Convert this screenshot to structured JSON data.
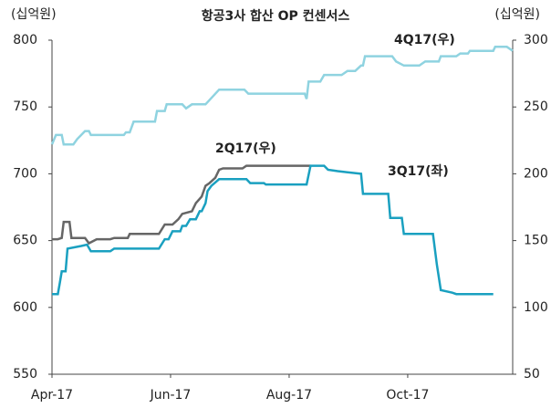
{
  "chart_data": {
    "type": "line",
    "title": "항공3사 합산 OP 컨센서스",
    "y_label": "(십억원)",
    "y2_label": "(십억원)",
    "xlim": [
      0,
      237
    ],
    "xticks": [
      {
        "value": 0,
        "label": "Apr-17"
      },
      {
        "value": 61,
        "label": "Jun-17"
      },
      {
        "value": 122,
        "label": "Aug-17"
      },
      {
        "value": 183,
        "label": "Oct-17"
      }
    ],
    "ylim": [
      550,
      800
    ],
    "yticks": [
      550,
      600,
      650,
      700,
      750,
      800
    ],
    "y2lim": [
      50,
      300
    ],
    "y2ticks": [
      50,
      100,
      150,
      200,
      250,
      300
    ],
    "series": [
      {
        "name": "4Q17(우)",
        "color": "#8fd3e0",
        "axis": "y2",
        "x": [
          0,
          2,
          5,
          6,
          11,
          13,
          17,
          19,
          20,
          37,
          38,
          40,
          42,
          53,
          54,
          58,
          59,
          67,
          69,
          72,
          79,
          86,
          99,
          101,
          130,
          131,
          132,
          138,
          140,
          149,
          152,
          156,
          159,
          160,
          161,
          175,
          177,
          181,
          189,
          192,
          199,
          200,
          208,
          210,
          214,
          215,
          227,
          228,
          234,
          237
        ],
        "values": [
          222,
          229,
          229,
          222,
          222,
          226,
          232,
          232,
          229,
          229,
          231,
          231,
          239,
          239,
          247,
          247,
          252,
          252,
          249,
          252,
          252,
          263,
          263,
          260,
          260,
          256,
          269,
          269,
          274,
          274,
          277,
          277,
          281,
          281,
          288,
          288,
          284,
          281,
          281,
          284,
          284,
          288,
          288,
          290,
          290,
          292,
          292,
          295,
          295,
          292
        ]
      },
      {
        "name": "2Q17(우)",
        "color": "#666666",
        "axis": "y2",
        "x": [
          0,
          3,
          5,
          6,
          9,
          10,
          17,
          19,
          23,
          30,
          32,
          39,
          40,
          55,
          58,
          62,
          65,
          67,
          72,
          74,
          77,
          79,
          81,
          84,
          86,
          88,
          98,
          100,
          133
        ],
        "values": [
          151,
          151,
          152,
          164,
          164,
          152,
          152,
          148,
          151,
          151,
          152,
          152,
          155,
          155,
          162,
          162,
          166,
          170,
          172,
          178,
          183,
          191,
          193,
          197,
          203,
          204,
          204,
          206,
          206
        ]
      },
      {
        "name": "3Q17(좌)",
        "color": "#1aa0c0",
        "axis": "y",
        "x": [
          0,
          3,
          4,
          5,
          7,
          8,
          15,
          18,
          20,
          30,
          32,
          55,
          58,
          60,
          62,
          66,
          67,
          69,
          71,
          74,
          76,
          77,
          79,
          80,
          82,
          86,
          100,
          102,
          109,
          110,
          131,
          133,
          140,
          142,
          147,
          159,
          160,
          173,
          174,
          180,
          181,
          196,
          198,
          200,
          206,
          208,
          227
        ],
        "values": [
          610,
          610,
          618,
          627,
          627,
          644,
          646,
          647,
          642,
          642,
          644,
          644,
          651,
          651,
          657,
          657,
          661,
          661,
          666,
          666,
          672,
          672,
          678,
          687,
          691,
          696,
          696,
          693,
          693,
          692,
          692,
          706,
          706,
          703,
          702,
          700,
          685,
          685,
          667,
          667,
          655,
          655,
          632,
          613,
          611,
          610,
          610
        ]
      }
    ]
  }
}
